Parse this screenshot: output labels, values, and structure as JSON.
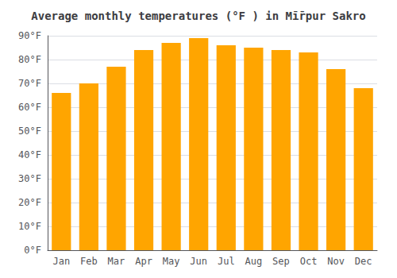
{
  "chart_data": {
    "type": "bar",
    "title": "Average monthly temperatures (°F ) in Mī̄rpur Sakro",
    "categories": [
      "Jan",
      "Feb",
      "Mar",
      "Apr",
      "May",
      "Jun",
      "Jul",
      "Aug",
      "Sep",
      "Oct",
      "Nov",
      "Dec"
    ],
    "values": [
      66,
      70,
      77,
      84,
      87,
      89,
      86,
      85,
      84,
      83,
      76,
      68
    ],
    "color": "#FFA500",
    "ylim": [
      0,
      90
    ],
    "yticks": [
      {
        "value": 0,
        "label": "0°F"
      },
      {
        "value": 10,
        "label": "10°F"
      },
      {
        "value": 20,
        "label": "20°F"
      },
      {
        "value": 30,
        "label": "30°F"
      },
      {
        "value": 40,
        "label": "40°F"
      },
      {
        "value": 50,
        "label": "50°F"
      },
      {
        "value": 60,
        "label": "60°F"
      },
      {
        "value": 70,
        "label": "70°F"
      },
      {
        "value": 80,
        "label": "80°F"
      },
      {
        "value": 90,
        "label": "90°F"
      }
    ],
    "grid": true
  }
}
